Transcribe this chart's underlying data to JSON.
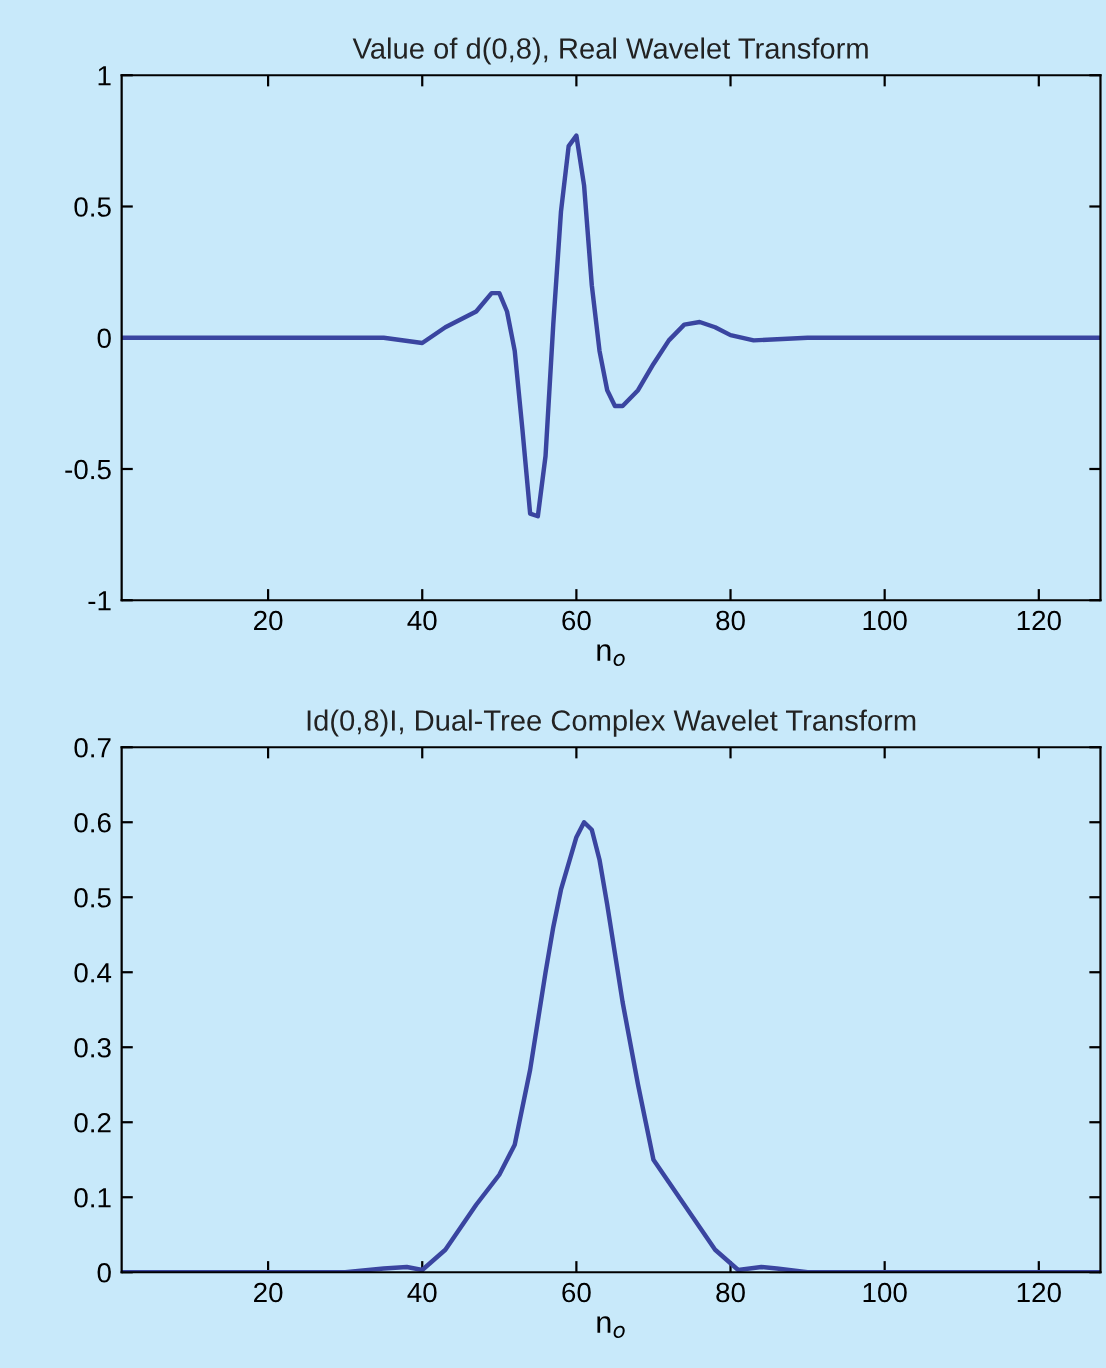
{
  "chart_data": [
    {
      "type": "line",
      "title": "Value of d(0,8), Real Wavelet Transform",
      "xlabel": "n$_{o}$",
      "x": [
        1,
        10,
        20,
        30,
        35,
        40,
        43,
        47,
        49,
        50,
        51,
        52,
        53,
        54,
        55,
        56,
        57,
        58,
        59,
        60,
        61,
        62,
        63,
        64,
        65,
        66,
        68,
        70,
        72,
        74,
        76,
        78,
        80,
        83,
        90,
        100,
        110,
        128
      ],
      "series": [
        {
          "color": "#3a45a0",
          "values": [
            0,
            0,
            0,
            0,
            0,
            -0.02,
            0.04,
            0.1,
            0.17,
            0.17,
            0.1,
            -0.05,
            -0.35,
            -0.67,
            -0.68,
            -0.45,
            0.05,
            0.48,
            0.73,
            0.77,
            0.58,
            0.2,
            -0.05,
            -0.2,
            -0.26,
            -0.26,
            -0.2,
            -0.1,
            -0.01,
            0.05,
            0.06,
            0.04,
            0.01,
            -0.01,
            0,
            0,
            0,
            0
          ]
        }
      ],
      "xlim": [
        1,
        128
      ],
      "ylim": [
        -1,
        1
      ],
      "xticks": [
        20,
        40,
        60,
        80,
        100,
        120
      ],
      "yticks": [
        -1,
        -0.5,
        0,
        0.5,
        1
      ]
    },
    {
      "type": "line",
      "title": "Id(0,8)I, Dual-Tree Complex Wavelet Transform",
      "xlabel": "n$_{o}$",
      "x": [
        1,
        10,
        20,
        30,
        35,
        38,
        40,
        43,
        47,
        50,
        52,
        54,
        56,
        57,
        58,
        60,
        61,
        62,
        63,
        64,
        66,
        68,
        69,
        70,
        72,
        74,
        76,
        78,
        81,
        84,
        86,
        90,
        100,
        128
      ],
      "series": [
        {
          "color": "#3a45a0",
          "values": [
            0,
            0,
            0,
            0,
            0.005,
            0.007,
            0.003,
            0.03,
            0.09,
            0.13,
            0.17,
            0.27,
            0.4,
            0.46,
            0.51,
            0.58,
            0.6,
            0.59,
            0.55,
            0.49,
            0.36,
            0.25,
            0.2,
            0.15,
            0.12,
            0.09,
            0.06,
            0.03,
            0.003,
            0.007,
            0.005,
            0,
            0,
            0
          ]
        }
      ],
      "xlim": [
        1,
        128
      ],
      "ylim": [
        0,
        0.7
      ],
      "xticks": [
        20,
        40,
        60,
        80,
        100,
        120
      ],
      "yticks": [
        0,
        0.1,
        0.2,
        0.3,
        0.4,
        0.5,
        0.6,
        0.7
      ]
    }
  ]
}
